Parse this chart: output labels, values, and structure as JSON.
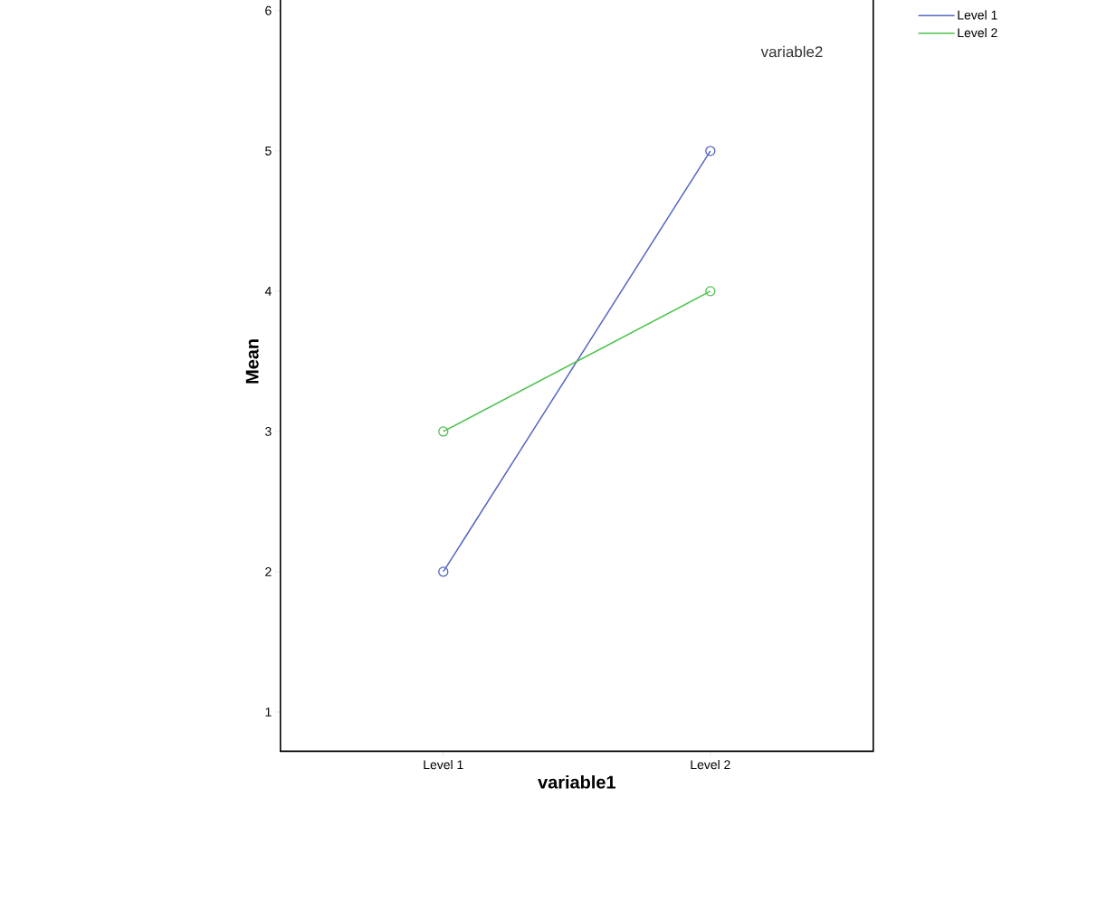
{
  "chart_data": {
    "type": "line",
    "xlabel": "variable1",
    "ylabel": "Mean",
    "legend_title": "variable2",
    "categories": [
      "Level 1",
      "Level 2"
    ],
    "series": [
      {
        "name": "Level 1",
        "color": "#5366c0",
        "values": [
          2,
          5
        ]
      },
      {
        "name": "Level 2",
        "color": "#4cc24c",
        "values": [
          3,
          4
        ]
      }
    ],
    "ylim": [
      0.72,
      6.28
    ],
    "yticks": [
      1,
      2,
      3,
      4,
      5,
      6
    ],
    "grid": false,
    "legend": "top right",
    "marker": "circle",
    "line_style": "solid"
  }
}
